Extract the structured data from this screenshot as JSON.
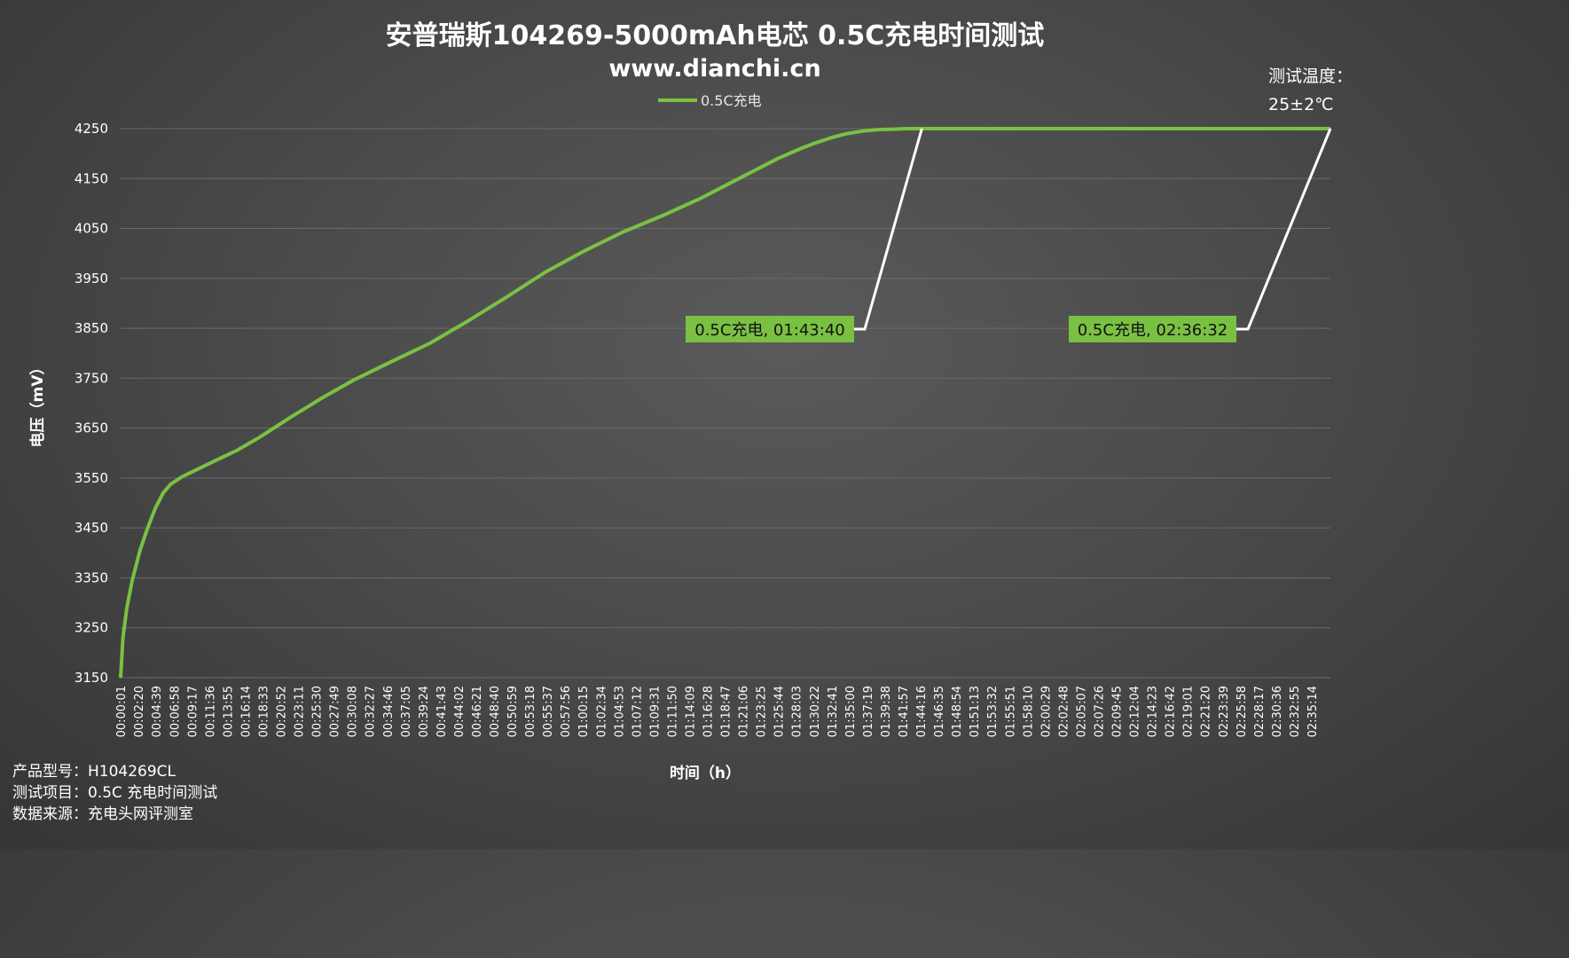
{
  "chart_data": {
    "type": "line",
    "title": "安普瑞斯104269-5000mAh电芯 0.5C充电时间测试",
    "subtitle": "www.dianchi.cn",
    "ylabel": "电压（mV）",
    "xlabel": "时间（h）",
    "ylim": [
      3150,
      4250
    ],
    "yticks": [
      3150,
      3250,
      3350,
      3450,
      3550,
      3650,
      3750,
      3850,
      3950,
      4050,
      4150,
      4250
    ],
    "xticks": [
      "00:00:01",
      "00:02:20",
      "00:04:39",
      "00:06:58",
      "00:09:17",
      "00:11:36",
      "00:13:55",
      "00:16:14",
      "00:18:33",
      "00:20:52",
      "00:23:11",
      "00:25:30",
      "00:27:49",
      "00:30:08",
      "00:32:27",
      "00:34:46",
      "00:37:05",
      "00:39:24",
      "00:41:43",
      "00:44:02",
      "00:46:21",
      "00:48:40",
      "00:50:59",
      "00:53:18",
      "00:55:37",
      "00:57:56",
      "01:00:15",
      "01:02:34",
      "01:04:53",
      "01:07:12",
      "01:09:31",
      "01:11:50",
      "01:14:09",
      "01:16:28",
      "01:18:47",
      "01:21:06",
      "01:23:25",
      "01:25:44",
      "01:28:03",
      "01:30:22",
      "01:32:41",
      "01:35:00",
      "01:37:19",
      "01:39:38",
      "01:41:57",
      "01:44:16",
      "01:46:35",
      "01:48:54",
      "01:51:13",
      "01:53:32",
      "01:55:51",
      "01:58:10",
      "02:00:29",
      "02:02:48",
      "02:05:07",
      "02:07:26",
      "02:09:45",
      "02:12:04",
      "02:14:23",
      "02:16:42",
      "02:19:01",
      "02:21:20",
      "02:23:39",
      "02:25:58",
      "02:28:17",
      "02:30:36",
      "02:32:55",
      "02:35:14"
    ],
    "grid": true,
    "legend_position": "top-center",
    "series": [
      {
        "name": "0.5C充电",
        "color": "#7ac143",
        "x_minutes": [
          0,
          0.3,
          0.8,
          1.5,
          2.5,
          3.5,
          4.5,
          5.5,
          6.5,
          8,
          10,
          12,
          15,
          18,
          22,
          26,
          30,
          35,
          40,
          45,
          50,
          55,
          60,
          65,
          70,
          75,
          80,
          85,
          88,
          90,
          92,
          94,
          96,
          98,
          100,
          102,
          103.67,
          110,
          120,
          130,
          140,
          150,
          156.53
        ],
        "values": [
          3150,
          3230,
          3290,
          3345,
          3405,
          3450,
          3490,
          3520,
          3538,
          3553,
          3568,
          3583,
          3605,
          3632,
          3672,
          3710,
          3745,
          3783,
          3820,
          3865,
          3913,
          3963,
          4005,
          4043,
          4075,
          4110,
          4150,
          4190,
          4210,
          4222,
          4232,
          4240,
          4245,
          4248,
          4249,
          4250,
          4250,
          4250,
          4250,
          4250,
          4250,
          4250,
          4250
        ]
      }
    ],
    "annotations": [
      {
        "label": "0.5C充电, 01:43:40",
        "x_minutes": 103.67,
        "y": 4250,
        "box_color": "#7ac143"
      },
      {
        "label": "0.5C充电, 02:36:32",
        "x_minutes": 156.53,
        "y": 4250,
        "box_color": "#7ac143"
      }
    ]
  },
  "notes": {
    "temp_title": "测试温度：",
    "temp_value": "25±2℃",
    "product_model": "产品型号：H104269CL",
    "test_item": "测试项目：0.5C 充电时间测试",
    "data_source": "数据来源：充电头网评测室"
  }
}
